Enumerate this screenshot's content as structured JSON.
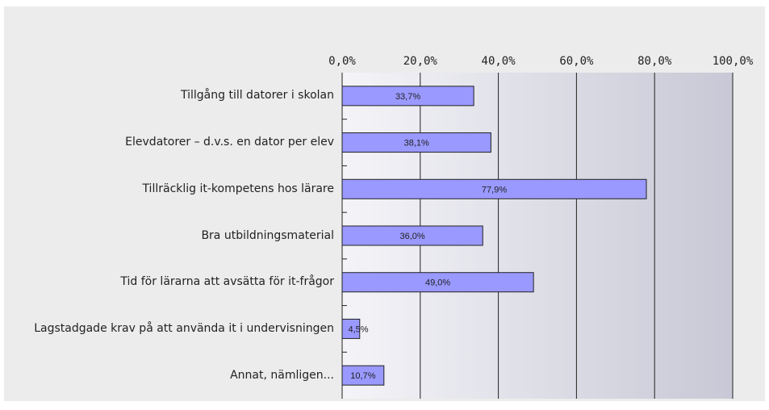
{
  "chart_data": {
    "type": "bar",
    "orientation": "horizontal",
    "categories": [
      "Tillgång till datorer i skolan",
      "Elevdatorer – d.v.s. en dator per elev",
      "Tillräcklig it-kompetens hos lärare",
      "Bra utbildningsmaterial",
      "Tid för lärarna att avsätta för it-frågor",
      "Lagstadgade krav på att använda it i undervisningen",
      "Annat, nämligen..."
    ],
    "values": [
      33.7,
      38.1,
      77.9,
      36.0,
      49.0,
      4.5,
      10.7
    ],
    "value_labels": [
      "33,7%",
      "38,1%",
      "77,9%",
      "36,0%",
      "49,0%",
      "4,5%",
      "10,7%"
    ],
    "color": "#9999ff",
    "xlim": [
      0,
      100
    ],
    "xticks": [
      {
        "value": 0,
        "label": "0,0%"
      },
      {
        "value": 20,
        "label": "20,0%"
      },
      {
        "value": 40,
        "label": "40,0%"
      },
      {
        "value": 60,
        "label": "60,0%"
      },
      {
        "value": 80,
        "label": "80,0%"
      },
      {
        "value": 100,
        "label": "100,0%"
      }
    ],
    "grid": true
  }
}
